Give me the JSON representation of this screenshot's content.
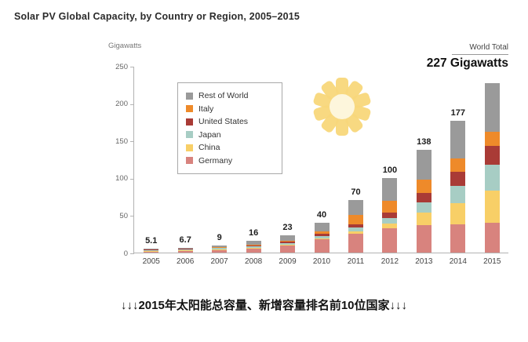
{
  "title": "Solar PV Global Capacity, by Country or Region, 2005–2015",
  "caption": "↓↓↓2015年太阳能总容量、新增容量排名前10位国家↓↓↓",
  "chart_data": {
    "type": "bar",
    "stacked": true,
    "title": "Solar PV Global Capacity, by Country or Region, 2005–2015",
    "xlabel": "",
    "ylabel": "Gigawatts",
    "ylim": [
      0,
      250
    ],
    "yticks": [
      0,
      50,
      100,
      150,
      200,
      250
    ],
    "grid": false,
    "legend_position": "upper-left-inside",
    "categories": [
      "2005",
      "2006",
      "2007",
      "2008",
      "2009",
      "2010",
      "2011",
      "2012",
      "2013",
      "2014",
      "2015"
    ],
    "totals": [
      "5.1",
      "6.7",
      "9",
      "16",
      "23",
      "40",
      "70",
      "100",
      "138",
      "177",
      "227"
    ],
    "world_total_label": "World Total",
    "world_total_value": "227 Gigawatts",
    "series": [
      {
        "name": "Germany",
        "color": "#d8837e",
        "values": [
          2.1,
          2.9,
          4.2,
          6.1,
          9.9,
          17.9,
          25.4,
          32.6,
          36.3,
          38.2,
          39.7
        ]
      },
      {
        "name": "China",
        "color": "#f8cf67",
        "values": [
          0.1,
          0.1,
          0.1,
          0.3,
          0.4,
          0.9,
          3.3,
          6.7,
          17.8,
          28.2,
          43.5
        ]
      },
      {
        "name": "Japan",
        "color": "#a7cdc4",
        "values": [
          1.4,
          1.7,
          1.9,
          2.1,
          2.6,
          3.6,
          4.9,
          6.6,
          13.6,
          23.3,
          34.4
        ]
      },
      {
        "name": "United States",
        "color": "#a93b36",
        "values": [
          0.5,
          0.6,
          0.8,
          1.2,
          1.6,
          2.5,
          4.4,
          7.2,
          12.0,
          18.3,
          25.6
        ]
      },
      {
        "name": "Italy",
        "color": "#ee8a2a",
        "values": [
          0.05,
          0.05,
          0.1,
          0.5,
          1.2,
          3.5,
          12.8,
          16.4,
          17.6,
          18.5,
          18.9
        ]
      },
      {
        "name": "Rest of World",
        "color": "#9a9a9a",
        "values": [
          1.0,
          1.3,
          1.9,
          5.8,
          7.3,
          11.6,
          19.2,
          30.5,
          40.7,
          50.5,
          64.9
        ]
      }
    ],
    "legend_order": [
      "Rest of World",
      "Italy",
      "United States",
      "Japan",
      "China",
      "Germany"
    ]
  }
}
